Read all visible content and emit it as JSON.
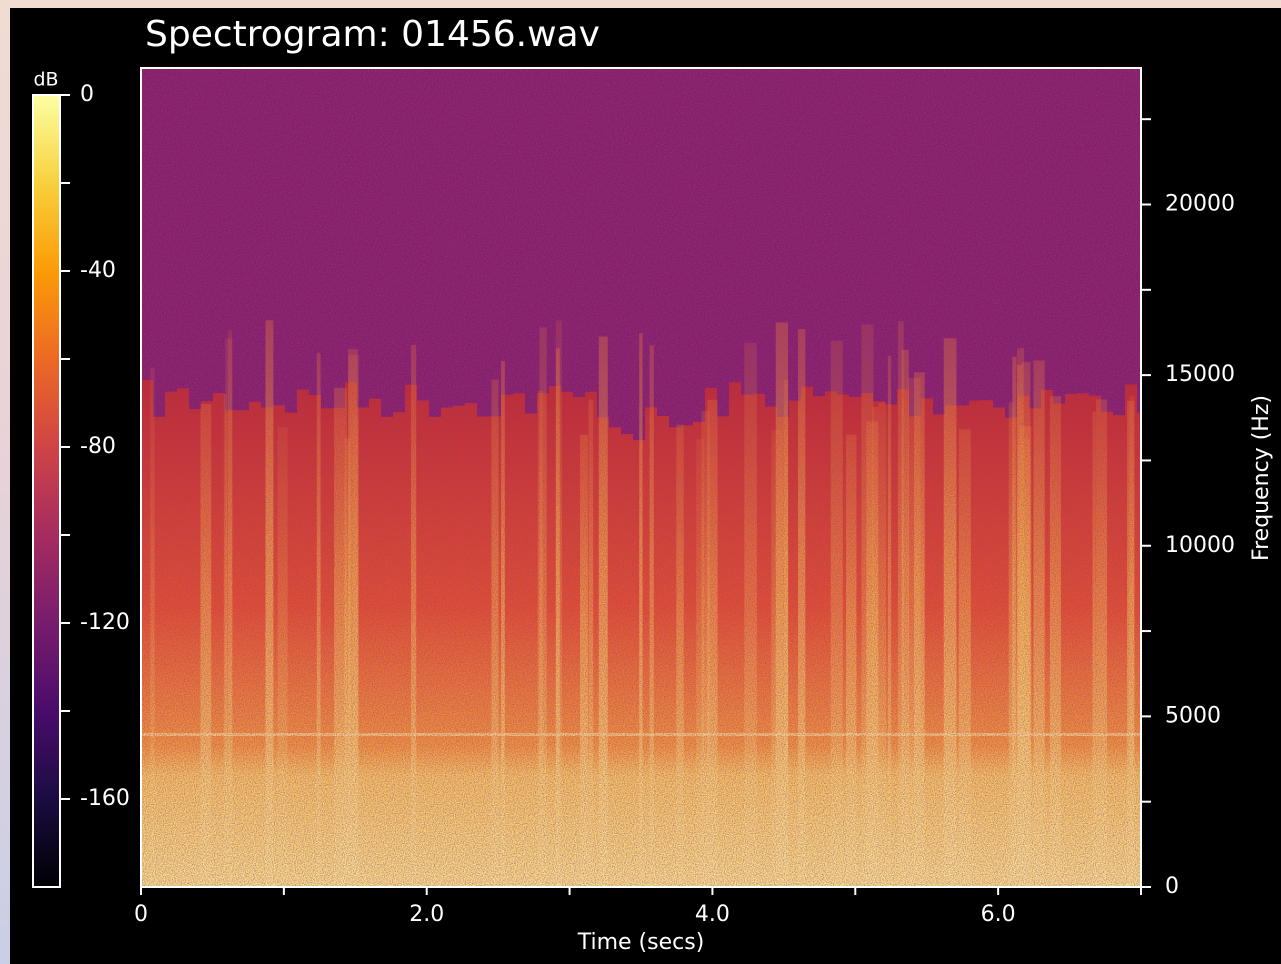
{
  "chart_data": {
    "type": "spectrogram",
    "title": "Spectrogram: 01456.wav",
    "xlabel": "Time (secs)",
    "ylabel": "Frequency (Hz)",
    "xlim": [
      0,
      7
    ],
    "xticks": [
      0,
      {
        "value": 2,
        "label": "2.0"
      },
      {
        "value": 4,
        "label": "4.0"
      },
      {
        "value": 6,
        "label": "6.0"
      }
    ],
    "xminor": [
      1,
      3,
      5,
      7
    ],
    "ylim": [
      0,
      24000
    ],
    "yticks": [
      0,
      5000,
      10000,
      15000,
      20000
    ],
    "yminor": [
      2500,
      7500,
      12500,
      17500,
      22500
    ],
    "colorbar": {
      "label": "dB",
      "lim": [
        -180,
        0
      ],
      "ticks": [
        0,
        -40,
        -80,
        -120,
        -160
      ],
      "minor": [
        -20,
        -60,
        -100,
        -140
      ],
      "colormap": "inferno"
    }
  }
}
